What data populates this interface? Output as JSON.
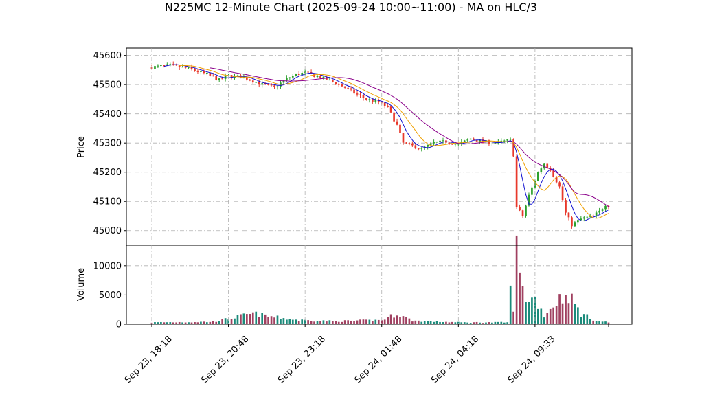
{
  "chart_data": {
    "type": "candlestick",
    "title": "N225MC 12-Minute Chart (2025-09-24 10:00~11:00) - MA on HLC/3",
    "price_panel": {
      "ylabel": "Price",
      "ylim": [
        44950,
        45625
      ],
      "yticks": [
        45000,
        45100,
        45200,
        45300,
        45400,
        45500,
        45600
      ],
      "grid": true
    },
    "volume_panel": {
      "ylabel": "Volume",
      "ylim": [
        0,
        13500
      ],
      "yticks": [
        0,
        5000,
        10000
      ],
      "grid": true
    },
    "x_axis": {
      "tick_labels": [
        "Sep 23, 18:18",
        "Sep 23, 20:48",
        "Sep 23, 23:18",
        "Sep 24, 01:48",
        "Sep 24, 04:18",
        "Sep 24, 09:33"
      ],
      "tick_positions_index": [
        0,
        25,
        50,
        75,
        100,
        125
      ],
      "n_candles": 150
    },
    "up_color": "#2ca02c",
    "down_color": "#e8382b",
    "ma_colors": [
      "#1010d0",
      "#f0a000",
      "#8b008b"
    ],
    "price_anchors": [
      [
        0,
        45560
      ],
      [
        6,
        45565
      ],
      [
        12,
        45555
      ],
      [
        18,
        45535
      ],
      [
        22,
        45515
      ],
      [
        25,
        45530
      ],
      [
        30,
        45525
      ],
      [
        36,
        45500
      ],
      [
        40,
        45490
      ],
      [
        44,
        45520
      ],
      [
        47,
        45535
      ],
      [
        50,
        45540
      ],
      [
        55,
        45525
      ],
      [
        60,
        45505
      ],
      [
        63,
        45490
      ],
      [
        67,
        45465
      ],
      [
        70,
        45450
      ],
      [
        74,
        45440
      ],
      [
        77,
        45420
      ],
      [
        80,
        45360
      ],
      [
        82,
        45300
      ],
      [
        85,
        45290
      ],
      [
        88,
        45280
      ],
      [
        92,
        45300
      ],
      [
        96,
        45305
      ],
      [
        100,
        45295
      ],
      [
        104,
        45315
      ],
      [
        108,
        45305
      ],
      [
        112,
        45300
      ],
      [
        117,
        45310
      ],
      [
        118,
        45260
      ],
      [
        119,
        45080
      ],
      [
        121,
        45050
      ],
      [
        123,
        45120
      ],
      [
        126,
        45200
      ],
      [
        128,
        45230
      ],
      [
        130,
        45210
      ],
      [
        133,
        45150
      ],
      [
        135,
        45060
      ],
      [
        137,
        45020
      ],
      [
        140,
        45040
      ],
      [
        144,
        45050
      ],
      [
        146,
        45065
      ],
      [
        148,
        45090
      ],
      [
        149,
        45085
      ]
    ],
    "volume_anchors": [
      [
        0,
        300
      ],
      [
        20,
        400
      ],
      [
        33,
        1800
      ],
      [
        40,
        1200
      ],
      [
        48,
        700
      ],
      [
        60,
        500
      ],
      [
        75,
        700
      ],
      [
        80,
        1800
      ],
      [
        85,
        600
      ],
      [
        100,
        300
      ],
      [
        116,
        300
      ],
      [
        117,
        5500
      ],
      [
        118,
        3000
      ],
      [
        119,
        12500
      ],
      [
        120,
        8500
      ],
      [
        121,
        5700
      ],
      [
        122,
        4500
      ],
      [
        125,
        4300
      ],
      [
        128,
        1500
      ],
      [
        133,
        4400
      ],
      [
        136,
        5000
      ],
      [
        140,
        1800
      ],
      [
        145,
        600
      ],
      [
        149,
        300
      ]
    ]
  }
}
